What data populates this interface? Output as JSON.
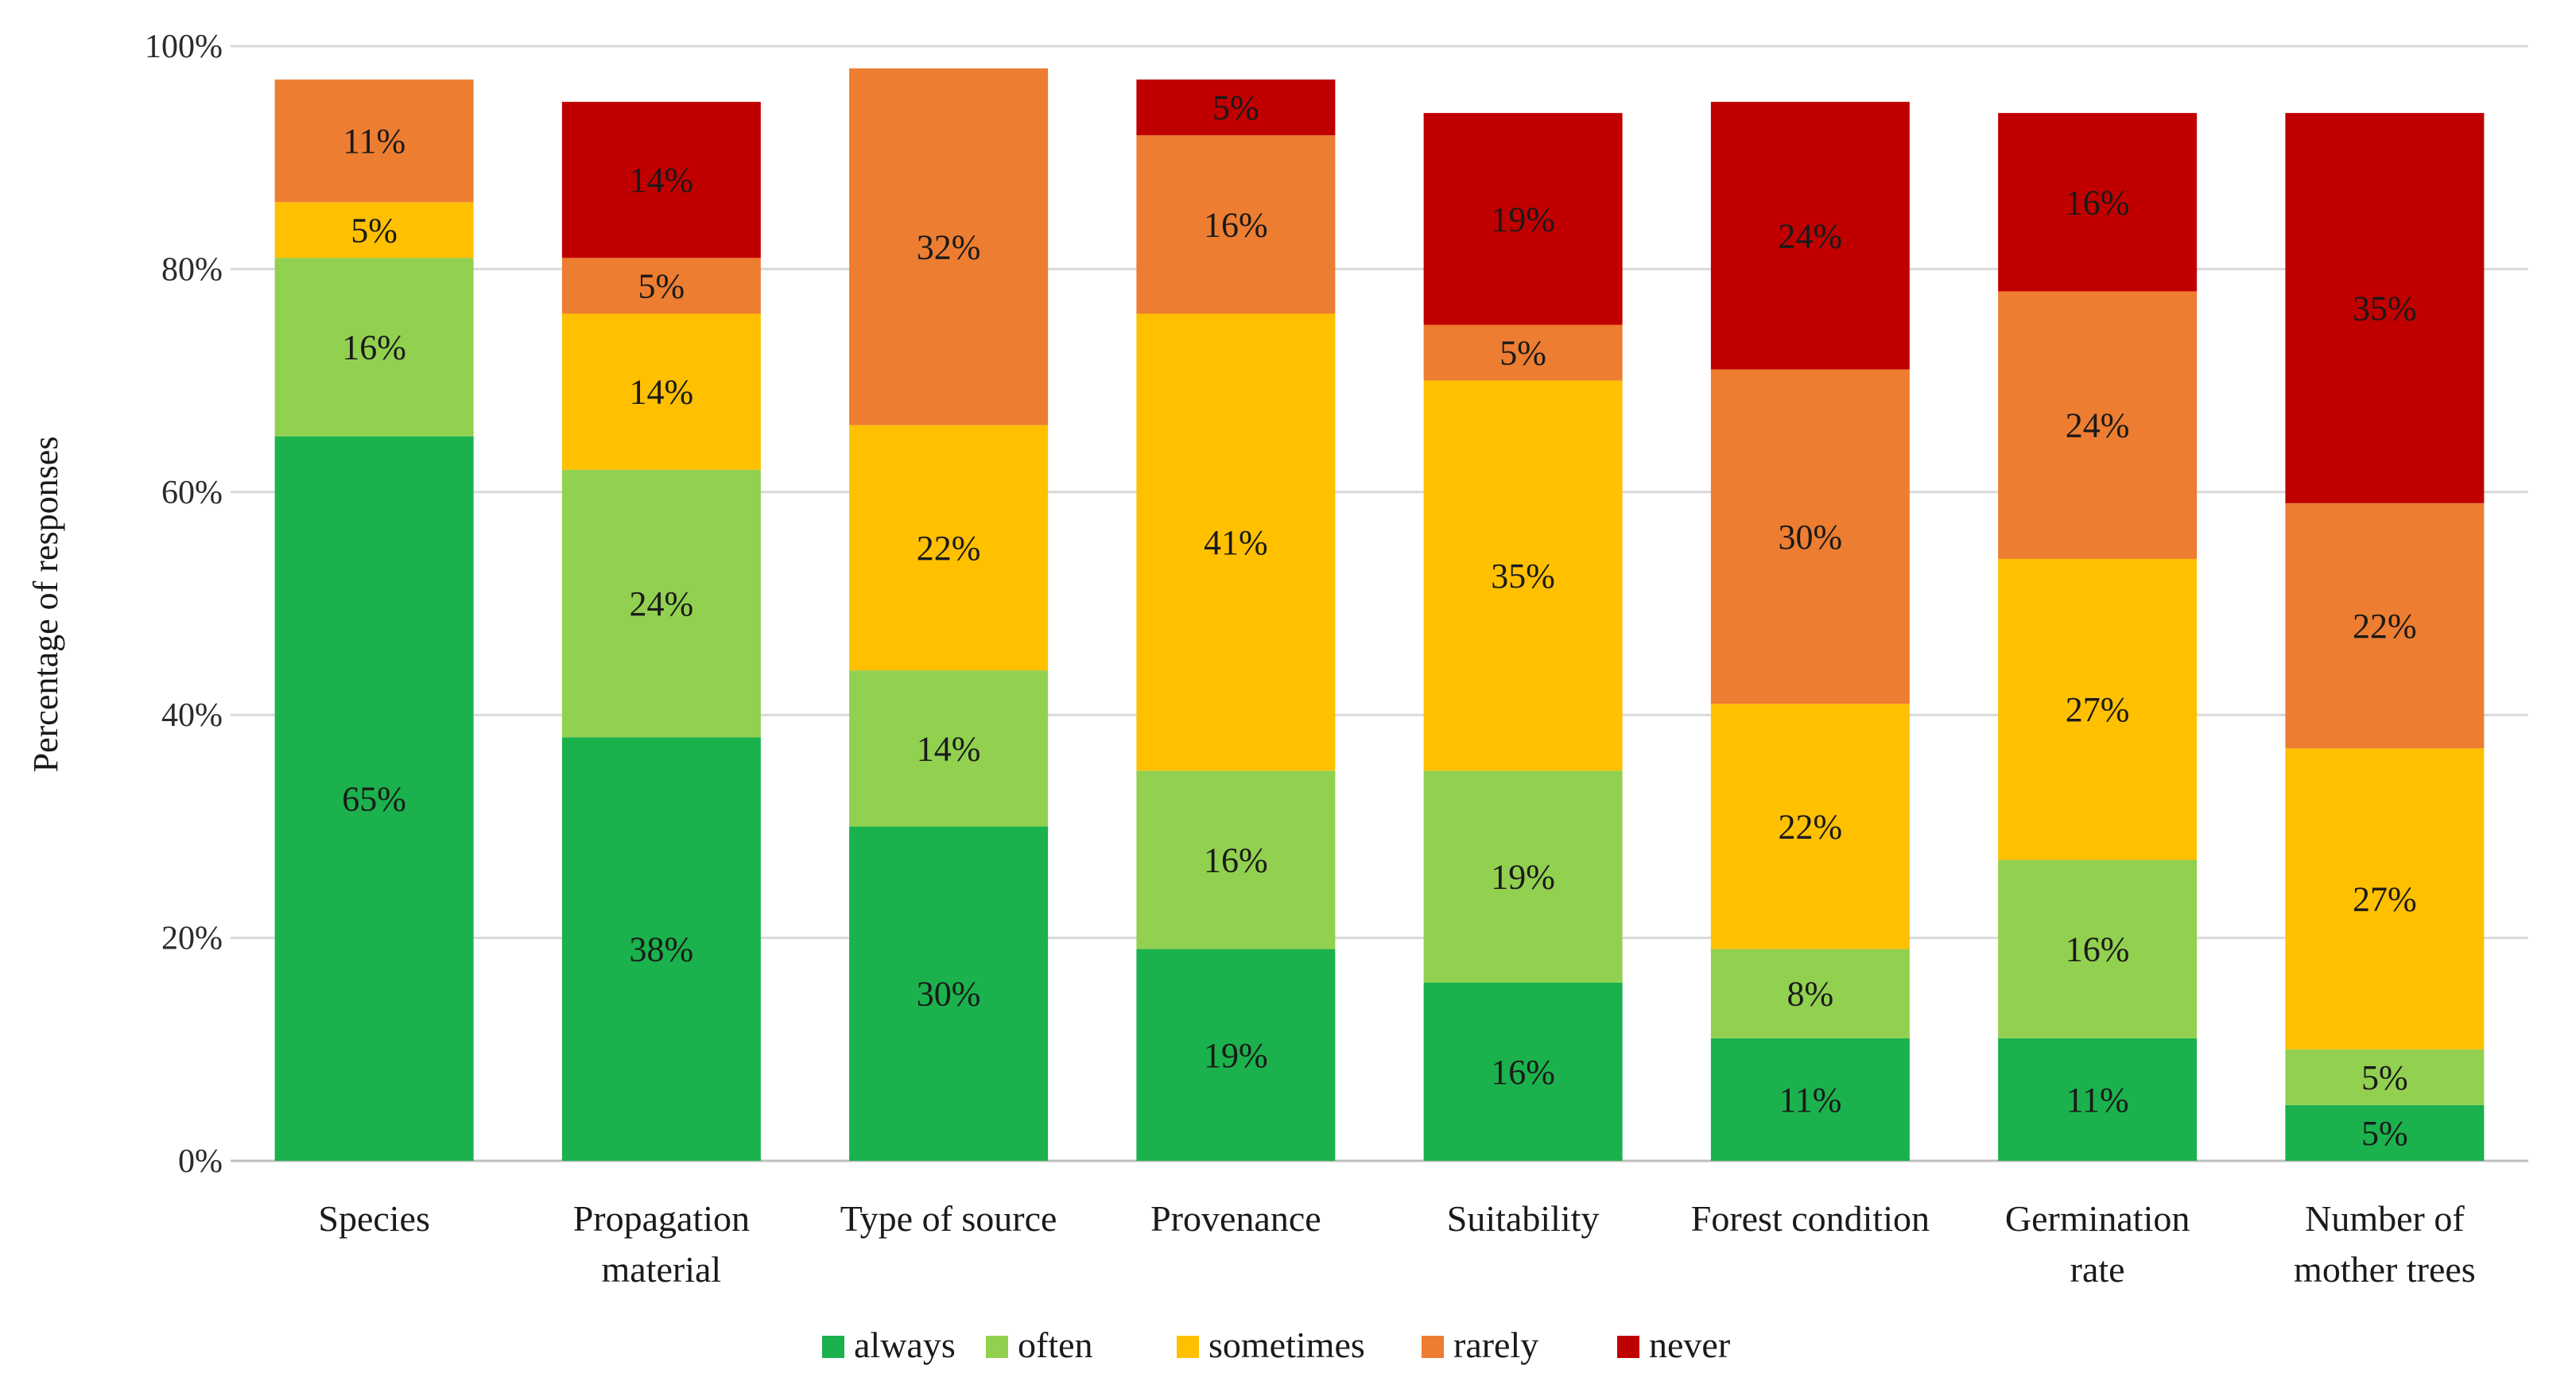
{
  "chart_data": {
    "type": "bar",
    "stacked": true,
    "title": "",
    "xlabel": "",
    "ylabel": "Percentage of responses",
    "ylim": [
      0,
      100
    ],
    "yticks": [
      "0%",
      "20%",
      "40%",
      "60%",
      "80%",
      "100%"
    ],
    "grid": true,
    "legend_position": "bottom",
    "categories": [
      [
        "Species"
      ],
      [
        "Propagation",
        "material"
      ],
      [
        "Type of source"
      ],
      [
        "Provenance"
      ],
      [
        "Suitability"
      ],
      [
        "Forest condition"
      ],
      [
        "Germination",
        "rate"
      ],
      [
        "Number of",
        "mother trees"
      ]
    ],
    "series": [
      {
        "name": "always",
        "color": "#1BB14C",
        "values": [
          65,
          38,
          30,
          19,
          16,
          11,
          11,
          5
        ]
      },
      {
        "name": "often",
        "color": "#92D050",
        "values": [
          16,
          24,
          14,
          16,
          19,
          8,
          16,
          5
        ]
      },
      {
        "name": "sometimes",
        "color": "#FFC000",
        "values": [
          5,
          14,
          22,
          41,
          35,
          22,
          27,
          27
        ]
      },
      {
        "name": "rarely",
        "color": "#ED7D31",
        "values": [
          11,
          5,
          32,
          16,
          5,
          30,
          24,
          22
        ]
      },
      {
        "name": "never",
        "color": "#C00000",
        "values": [
          0,
          14,
          0,
          5,
          19,
          24,
          16,
          35
        ]
      }
    ],
    "labels": [
      [
        "65%",
        "38%",
        "30%",
        "19%",
        "16%",
        "11%",
        "11%",
        "5%"
      ],
      [
        "16%",
        "24%",
        "14%",
        "16%",
        "19%",
        "8%",
        "16%",
        "5%"
      ],
      [
        "5%",
        "14%",
        "22%",
        "41%",
        "35%",
        "22%",
        "27%",
        "27%"
      ],
      [
        "11%",
        "5%",
        "32%",
        "16%",
        "5%",
        "30%",
        "24%",
        "22%"
      ],
      [
        "",
        "14%",
        "",
        "5%",
        "19%",
        "24%",
        "16%",
        "35%"
      ]
    ]
  }
}
